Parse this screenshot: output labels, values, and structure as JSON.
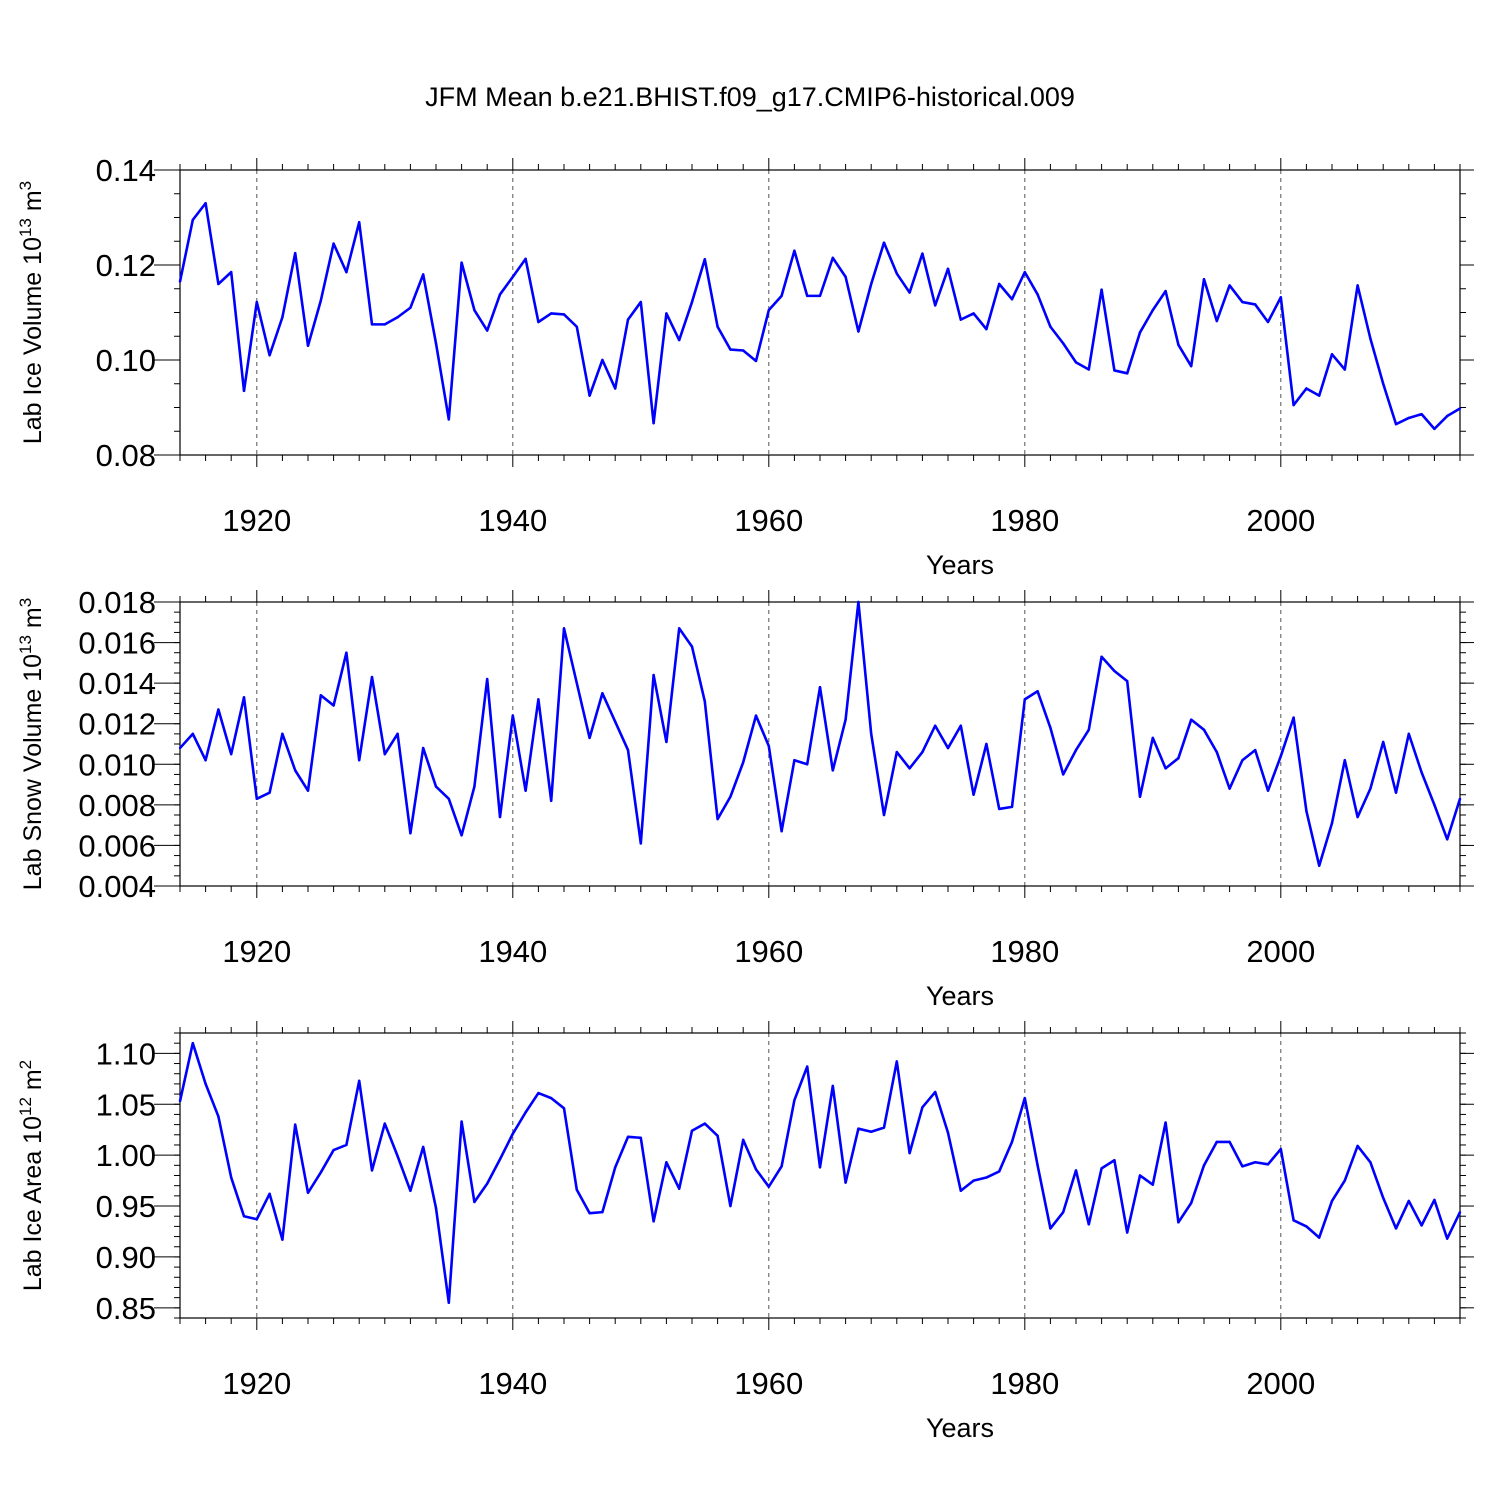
{
  "figure": {
    "title": "JFM Mean b.e21.BHIST.f09_g17.CMIP6-historical.009",
    "line_color": "#0000ff"
  },
  "chart_data": [
    {
      "type": "line",
      "xlabel": "Years",
      "ylabel": "Lab Ice Volume 10",
      "ylabel_exp": "13",
      "ylabel_unit": " m",
      "ylabel_unit_exp": "3",
      "xlim": [
        1914,
        2014
      ],
      "ylim": [
        0.08,
        0.14
      ],
      "x_ticks": [
        1920,
        1940,
        1960,
        1980,
        2000
      ],
      "x_tick_labels": [
        "1920",
        "1940",
        "1960",
        "1980",
        "2000"
      ],
      "y_ticks": [
        0.08,
        0.1,
        0.12,
        0.14
      ],
      "y_tick_labels": [
        "0.08",
        "0.10",
        "0.12",
        "0.14"
      ],
      "y_minor_step": 0.005,
      "grid": "dashed vertical at major x ticks",
      "series": [
        {
          "name": "Lab Ice Volume",
          "x_start": 1914,
          "values": [
            0.1165,
            0.1295,
            0.133,
            0.116,
            0.1185,
            0.0935,
            0.1122,
            0.101,
            0.109,
            0.1225,
            0.103,
            0.1125,
            0.1245,
            0.1185,
            0.129,
            0.1075,
            0.1075,
            0.109,
            0.111,
            0.118,
            0.1035,
            0.0875,
            0.1205,
            0.1105,
            0.1062,
            0.1138,
            0.1175,
            0.1213,
            0.108,
            0.1098,
            0.1096,
            0.107,
            0.0925,
            0.1,
            0.094,
            0.1085,
            0.1122,
            0.0867,
            0.1098,
            0.1042,
            0.1122,
            0.1212,
            0.107,
            0.1022,
            0.102,
            0.0998,
            0.1105,
            0.1135,
            0.123,
            0.1135,
            0.1135,
            0.1215,
            0.1175,
            0.106,
            0.116,
            0.1247,
            0.1182,
            0.1142,
            0.1224,
            0.1115,
            0.1192,
            0.1085,
            0.1098,
            0.1065,
            0.116,
            0.1128,
            0.1185,
            0.1138,
            0.107,
            0.1035,
            0.0995,
            0.098,
            0.1148,
            0.0978,
            0.0972,
            0.1058,
            0.1105,
            0.1145,
            0.1032,
            0.0987,
            0.117,
            0.1082,
            0.1157,
            0.1122,
            0.1117,
            0.108,
            0.1132,
            0.0905,
            0.094,
            0.0925,
            0.1012,
            0.098,
            0.1157,
            0.1045,
            0.095,
            0.0865,
            0.0878,
            0.0886,
            0.0855,
            0.0882,
            0.0898
          ]
        }
      ]
    },
    {
      "type": "line",
      "xlabel": "Years",
      "ylabel": "Lab Snow Volume 10",
      "ylabel_exp": "13",
      "ylabel_unit": " m",
      "ylabel_unit_exp": "3",
      "xlim": [
        1914,
        2014
      ],
      "ylim": [
        0.004,
        0.018
      ],
      "x_ticks": [
        1920,
        1940,
        1960,
        1980,
        2000
      ],
      "x_tick_labels": [
        "1920",
        "1940",
        "1960",
        "1980",
        "2000"
      ],
      "y_ticks": [
        0.004,
        0.006,
        0.008,
        0.01,
        0.012,
        0.014,
        0.016,
        0.018
      ],
      "y_tick_labels": [
        "0.004",
        "0.006",
        "0.008",
        "0.010",
        "0.012",
        "0.014",
        "0.016",
        "0.018"
      ],
      "y_minor_step": 0.0005,
      "grid": "dashed vertical at major x ticks",
      "series": [
        {
          "name": "Lab Snow Volume",
          "x_start": 1914,
          "values": [
            0.0108,
            0.0115,
            0.0102,
            0.0127,
            0.0105,
            0.0133,
            0.0083,
            0.0086,
            0.0115,
            0.0097,
            0.0087,
            0.0134,
            0.0129,
            0.0155,
            0.0102,
            0.0143,
            0.0105,
            0.0115,
            0.0066,
            0.0108,
            0.0089,
            0.0083,
            0.0065,
            0.0089,
            0.0142,
            0.0074,
            0.0124,
            0.0087,
            0.0132,
            0.0082,
            0.0167,
            0.014,
            0.0113,
            0.0135,
            0.0121,
            0.0107,
            0.0061,
            0.0144,
            0.0111,
            0.0167,
            0.0158,
            0.0131,
            0.0073,
            0.0084,
            0.0101,
            0.0124,
            0.0109,
            0.0067,
            0.0102,
            0.01,
            0.0138,
            0.0097,
            0.0122,
            0.018,
            0.0115,
            0.0075,
            0.0106,
            0.0098,
            0.0106,
            0.0119,
            0.0108,
            0.0119,
            0.0085,
            0.011,
            0.0078,
            0.0079,
            0.0132,
            0.0136,
            0.0118,
            0.0095,
            0.0107,
            0.0117,
            0.0153,
            0.0146,
            0.0141,
            0.0084,
            0.0113,
            0.0098,
            0.0103,
            0.0122,
            0.0117,
            0.0106,
            0.0088,
            0.0102,
            0.0107,
            0.0087,
            0.0104,
            0.0123,
            0.0077,
            0.005,
            0.0071,
            0.0102,
            0.0074,
            0.0088,
            0.0111,
            0.0086,
            0.0115,
            0.0096,
            0.008,
            0.0063,
            0.0083
          ]
        }
      ]
    },
    {
      "type": "line",
      "xlabel": "Years",
      "ylabel": "Lab Ice Area 10",
      "ylabel_exp": "12",
      "ylabel_unit": " m",
      "ylabel_unit_exp": "2",
      "xlim": [
        1914,
        2014
      ],
      "ylim": [
        0.84,
        1.12
      ],
      "x_ticks": [
        1920,
        1940,
        1960,
        1980,
        2000
      ],
      "x_tick_labels": [
        "1920",
        "1940",
        "1960",
        "1980",
        "2000"
      ],
      "y_ticks": [
        0.85,
        0.9,
        0.95,
        1.0,
        1.05,
        1.1
      ],
      "y_tick_labels": [
        "0.85",
        "0.90",
        "0.95",
        "1.00",
        "1.05",
        "1.10"
      ],
      "y_minor_step": 0.01,
      "grid": "dashed vertical at major x ticks",
      "series": [
        {
          "name": "Lab Ice Area",
          "x_start": 1914,
          "values": [
            1.053,
            1.11,
            1.07,
            1.038,
            0.978,
            0.94,
            0.937,
            0.962,
            0.917,
            1.03,
            0.963,
            0.983,
            1.005,
            1.01,
            1.073,
            0.985,
            1.031,
            0.999,
            0.965,
            1.008,
            0.948,
            0.855,
            1.033,
            0.954,
            0.972,
            0.996,
            1.021,
            1.042,
            1.061,
            1.056,
            1.046,
            0.966,
            0.943,
            0.944,
            0.988,
            1.018,
            1.017,
            0.935,
            0.993,
            0.967,
            1.024,
            1.031,
            1.019,
            0.95,
            1.015,
            0.986,
            0.969,
            0.989,
            1.054,
            1.087,
            0.988,
            1.068,
            0.973,
            1.026,
            1.023,
            1.027,
            1.092,
            1.002,
            1.047,
            1.062,
            1.022,
            0.965,
            0.975,
            0.978,
            0.984,
            1.013,
            1.056,
            0.99,
            0.928,
            0.944,
            0.985,
            0.932,
            0.987,
            0.995,
            0.924,
            0.98,
            0.971,
            1.032,
            0.934,
            0.953,
            0.99,
            1.013,
            1.013,
            0.989,
            0.993,
            0.991,
            1.006,
            0.936,
            0.93,
            0.919,
            0.955,
            0.975,
            1.009,
            0.993,
            0.958,
            0.928,
            0.955,
            0.931,
            0.956,
            0.918,
            0.944
          ]
        }
      ]
    }
  ]
}
